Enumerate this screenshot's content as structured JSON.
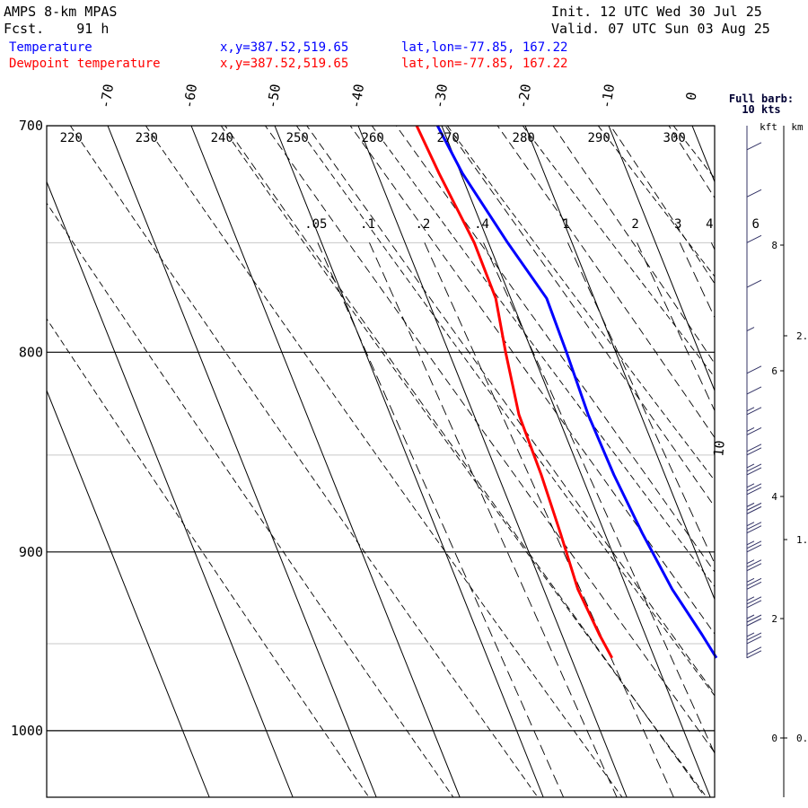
{
  "header": {
    "model": "AMPS 8-km MPAS",
    "fcst": "Fcst.    91 h",
    "init": "Init. 12 UTC Wed 30 Jul 25",
    "valid": "Valid. 07 UTC Sun 03 Aug 25",
    "temp_label": "Temperature",
    "dew_label": "Dewpoint temperature",
    "xy_text": "x,y=387.52,519.65",
    "latlon_text": "lat,lon=-77.85, 167.22"
  },
  "barb_legend": {
    "line1": "Full barb:",
    "line2": "10 kts"
  },
  "height_labels": {
    "kft": "kft",
    "km": "km"
  },
  "colors": {
    "temperature": "#0000ff",
    "dewpoint": "#ff0000",
    "axes": "#000000"
  },
  "chart_data": {
    "type": "line",
    "skew_t": true,
    "pressure_range_hpa": [
      700,
      1040
    ],
    "pressure_levels": [
      {
        "value": 700,
        "label": "700"
      },
      {
        "value": 800,
        "label": "800"
      },
      {
        "value": 900,
        "label": "900"
      },
      {
        "value": 1000,
        "label": "1000"
      }
    ],
    "temperature_isotherms": [
      {
        "value": -70,
        "label": "-70"
      },
      {
        "value": -60,
        "label": "-60"
      },
      {
        "value": -50,
        "label": "-50"
      },
      {
        "value": -40,
        "label": "-40"
      },
      {
        "value": -30,
        "label": "-30"
      },
      {
        "value": -20,
        "label": "-20"
      },
      {
        "value": -10,
        "label": "-10"
      },
      {
        "value": 0,
        "label": "0"
      },
      {
        "value": 10,
        "label": "10"
      }
    ],
    "dry_adiabats_K": [
      {
        "value": 220,
        "label": "220"
      },
      {
        "value": 230,
        "label": "230"
      },
      {
        "value": 240,
        "label": "240"
      },
      {
        "value": 250,
        "label": "250"
      },
      {
        "value": 260,
        "label": "260"
      },
      {
        "value": 270,
        "label": "270"
      },
      {
        "value": 280,
        "label": "280"
      },
      {
        "value": 290,
        "label": "290"
      },
      {
        "value": 300,
        "label": "300"
      }
    ],
    "mixing_ratio_g_kg": [
      {
        "value": 0.05,
        "label": ".05"
      },
      {
        "value": 0.1,
        "label": ".1"
      },
      {
        "value": 0.2,
        "label": ".2"
      },
      {
        "value": 0.4,
        "label": ".4"
      },
      {
        "value": 1,
        "label": "1"
      },
      {
        "value": 2,
        "label": "2"
      },
      {
        "value": 3,
        "label": "3"
      },
      {
        "value": 4,
        "label": "4"
      },
      {
        "value": 6,
        "label": "6"
      }
    ],
    "series": [
      {
        "name": "Temperature",
        "pressure_hpa": [
          700,
          720,
          750,
          775,
          800,
          830,
          860,
          890,
          920,
          945,
          958
        ],
        "temperature_c": [
          -30.5,
          -29.8,
          -27.7,
          -25.7,
          -25.9,
          -26.3,
          -26.1,
          -25.5,
          -24.6,
          -23.2,
          -22.6
        ]
      },
      {
        "name": "Dewpoint temperature",
        "pressure_hpa": [
          700,
          720,
          750,
          775,
          800,
          830,
          860,
          890,
          920,
          945,
          958
        ],
        "temperature_c": [
          -33.0,
          -32.6,
          -31.7,
          -31.8,
          -33.2,
          -34.6,
          -34.8,
          -35.3,
          -35.9,
          -35.5,
          -35.1
        ]
      }
    ],
    "height_axis": {
      "kft_ticks": [
        "8",
        "6",
        "4",
        "2",
        "0"
      ],
      "km_ticks": [
        "2.",
        "1.",
        "0."
      ]
    },
    "wind_barbs": {
      "pressure_hpa": [
        710,
        730,
        750,
        770,
        790,
        810,
        820,
        830,
        840,
        850,
        860,
        870,
        880,
        890,
        900,
        910,
        920,
        930,
        940,
        950,
        958
      ],
      "speed_kt": [
        10,
        10,
        10,
        10,
        5,
        10,
        10,
        15,
        15,
        20,
        25,
        25,
        25,
        25,
        25,
        25,
        25,
        25,
        25,
        25,
        20
      ]
    },
    "grid": true,
    "legend": "top-left"
  }
}
